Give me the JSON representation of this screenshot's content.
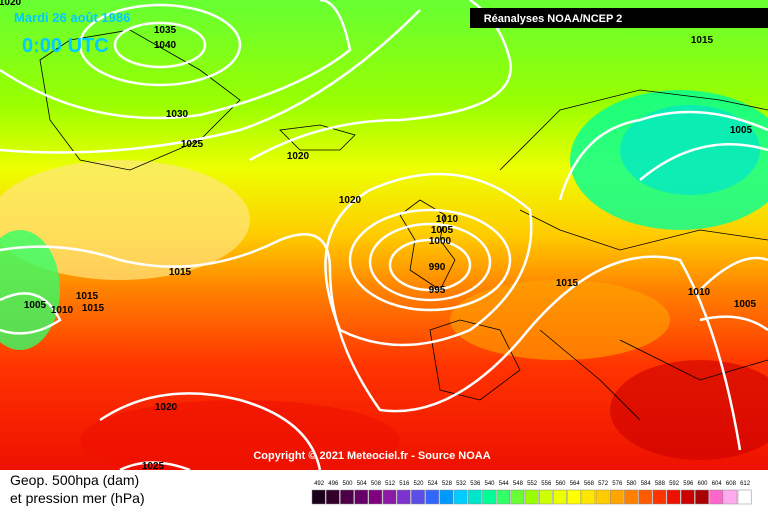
{
  "header": {
    "date": "Mardi 26 août 1986",
    "time": "0:00 UTC",
    "source": "Réanalyses NOAA/NCEP 2"
  },
  "isobar_labels": [
    "1020",
    "1035",
    "1040",
    "1030",
    "1025",
    "1020",
    "1020",
    "1010",
    "1005",
    "1000",
    "990",
    "995",
    "1015",
    "1015",
    "1015",
    "1005",
    "1010",
    "1015",
    "1010",
    "1005",
    "1005",
    "1015",
    "1020",
    "1025"
  ],
  "copyright": "Copyright © 2021 Meteociel.fr - Source NOAA",
  "legend": {
    "title": "Geop. 500hpa (dam)",
    "subtitle": "et pression mer (hPa)",
    "ticks": [
      492,
      496,
      500,
      504,
      508,
      512,
      516,
      520,
      524,
      528,
      532,
      536,
      540,
      544,
      548,
      552,
      556,
      560,
      564,
      568,
      572,
      576,
      580,
      584,
      588,
      592,
      596,
      600,
      604,
      608,
      612
    ],
    "colors": [
      "#1a001a",
      "#33002e",
      "#4d0047",
      "#660066",
      "#800080",
      "#8c1aa6",
      "#7a33cc",
      "#5c4de6",
      "#3366ff",
      "#0099ff",
      "#00ccff",
      "#00e6cc",
      "#00ff99",
      "#33ff66",
      "#66ff33",
      "#99ff00",
      "#ccff00",
      "#eeff00",
      "#ffff00",
      "#ffe600",
      "#ffcc00",
      "#ffa500",
      "#ff8000",
      "#ff5a00",
      "#ff3300",
      "#ee1100",
      "#cc0000",
      "#a80000",
      "#ff66cc",
      "#ffaaee",
      "#ffffff"
    ]
  }
}
